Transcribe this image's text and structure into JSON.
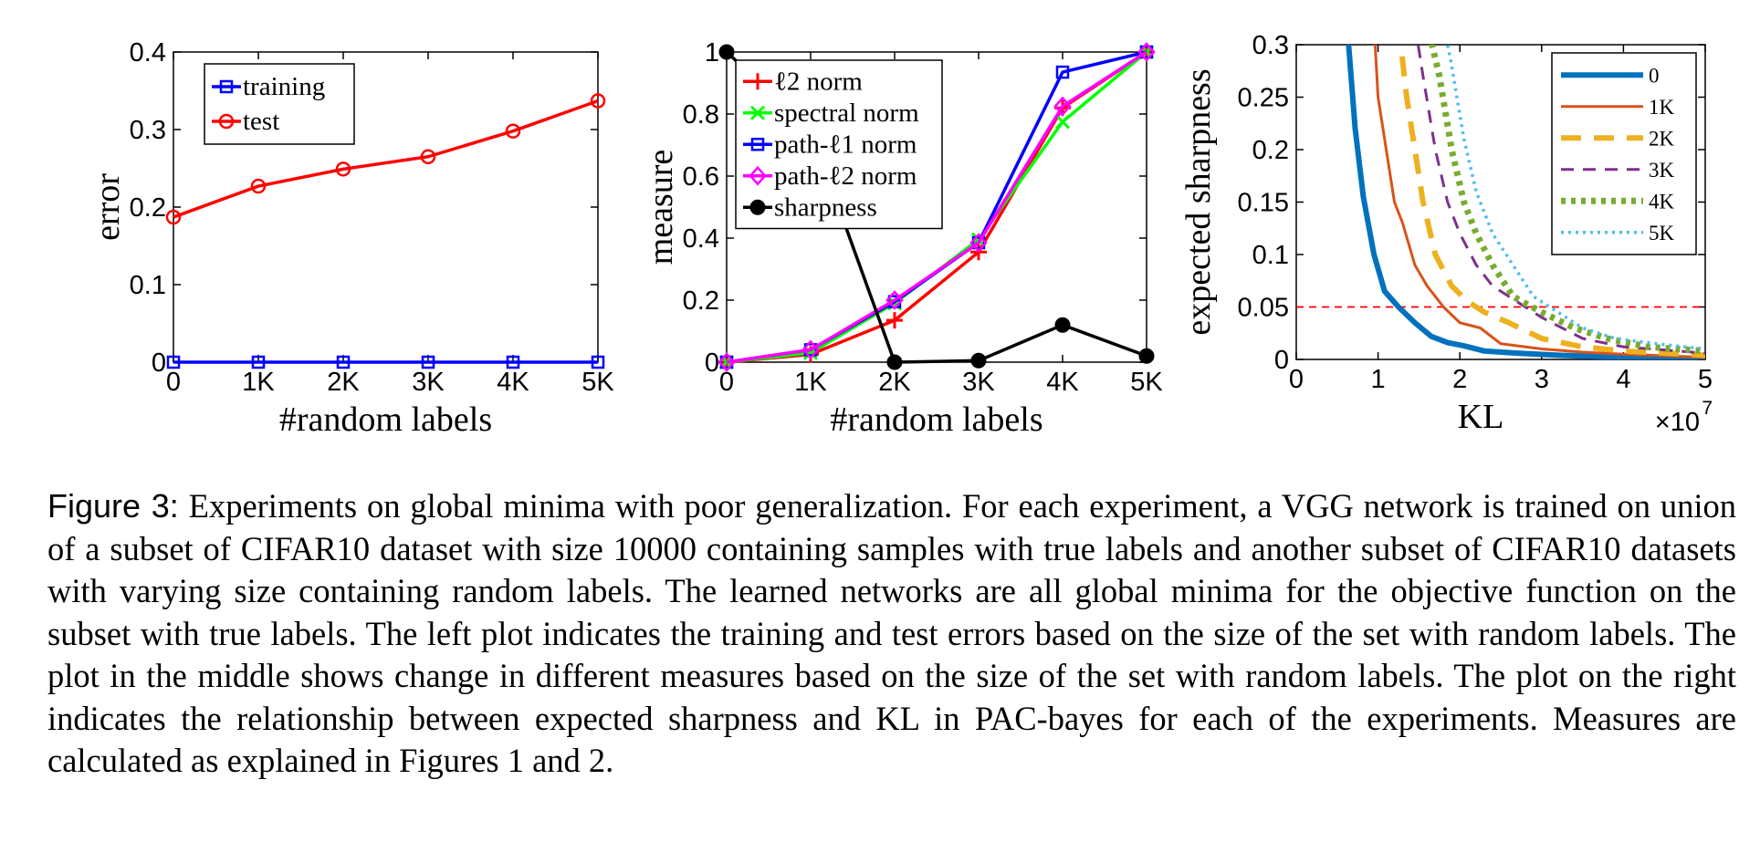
{
  "chart_data": [
    {
      "type": "line",
      "xlabel": "#random labels",
      "ylabel": "error",
      "categories": [
        "0",
        "1K",
        "2K",
        "3K",
        "4K",
        "5K"
      ],
      "x": [
        0,
        1000,
        2000,
        3000,
        4000,
        5000
      ],
      "ylim": [
        0,
        0.4
      ],
      "yticks": [
        "0",
        "0.1",
        "0.2",
        "0.3",
        "0.4"
      ],
      "grid": false,
      "legend": "top-left",
      "series": [
        {
          "name": "training",
          "color": "#0000ff",
          "marker": "square",
          "values": [
            0,
            0,
            0,
            0,
            0,
            0
          ]
        },
        {
          "name": "test",
          "color": "#ff0000",
          "marker": "circle",
          "values": [
            0.187,
            0.227,
            0.249,
            0.265,
            0.298,
            0.337
          ]
        }
      ]
    },
    {
      "type": "line",
      "xlabel": "#random labels",
      "ylabel": "measure",
      "categories": [
        "0",
        "1K",
        "2K",
        "3K",
        "4K",
        "5K"
      ],
      "x": [
        0,
        1000,
        2000,
        3000,
        4000,
        5000
      ],
      "ylim": [
        0,
        1
      ],
      "yticks": [
        "0",
        "0.2",
        "0.4",
        "0.6",
        "0.8",
        "1"
      ],
      "grid": false,
      "legend": "top-left",
      "series": [
        {
          "name": "ℓ2 norm",
          "color": "#ff0000",
          "marker": "plus",
          "values": [
            0,
            0.025,
            0.135,
            0.355,
            0.82,
            1.0
          ]
        },
        {
          "name": "spectral norm",
          "color": "#00ff00",
          "marker": "x",
          "values": [
            0,
            0.03,
            0.19,
            0.395,
            0.775,
            1.0
          ]
        },
        {
          "name": "path-ℓ1 norm",
          "color": "#0000ff",
          "marker": "square",
          "values": [
            0,
            0.04,
            0.195,
            0.385,
            0.935,
            1.0
          ]
        },
        {
          "name": "path-ℓ2 norm",
          "color": "#ff00ff",
          "marker": "diamond",
          "values": [
            0,
            0.04,
            0.2,
            0.385,
            0.825,
            1.0
          ]
        },
        {
          "name": "sharpness",
          "color": "#000000",
          "marker": "dot",
          "values": [
            1.0,
            0.75,
            0.0,
            0.005,
            0.12,
            0.02
          ]
        }
      ]
    },
    {
      "type": "line",
      "xlabel": "KL",
      "x_exponent": "×10",
      "x_exponent_power": "7",
      "ylabel": "expected sharpness",
      "xlim": [
        0,
        5
      ],
      "ylim": [
        0,
        0.3
      ],
      "xticks": [
        "0",
        "1",
        "2",
        "3",
        "4",
        "5"
      ],
      "yticks": [
        "0",
        "0.05",
        "0.1",
        "0.15",
        "0.2",
        "0.25",
        "0.3"
      ],
      "threshold": {
        "value": 0.05,
        "color": "#ff0000",
        "style": "dashed"
      },
      "grid": false,
      "legend": "top-right",
      "series": [
        {
          "name": "0",
          "color": "#0072bd",
          "style": "solid-thick",
          "x": [
            0.62,
            0.72,
            0.82,
            0.95,
            1.08,
            1.25,
            1.45,
            1.65,
            1.85,
            2.05,
            2.3,
            2.7,
            3.2,
            4.0,
            5.0
          ],
          "values": [
            0.32,
            0.22,
            0.155,
            0.1,
            0.065,
            0.05,
            0.035,
            0.022,
            0.016,
            0.013,
            0.008,
            0.006,
            0.004,
            0.002,
            0.001
          ]
        },
        {
          "name": "1K",
          "color": "#d95319",
          "style": "solid",
          "x": [
            0.95,
            1.0,
            1.1,
            1.2,
            1.3,
            1.45,
            1.6,
            1.8,
            2.0,
            2.25,
            2.5,
            3.0,
            3.5,
            4.0,
            5.0
          ],
          "values": [
            0.32,
            0.25,
            0.2,
            0.15,
            0.13,
            0.09,
            0.07,
            0.05,
            0.035,
            0.03,
            0.015,
            0.01,
            0.007,
            0.005,
            0.002
          ]
        },
        {
          "name": "2K",
          "color": "#edb120",
          "style": "long-dash",
          "x": [
            1.25,
            1.35,
            1.45,
            1.55,
            1.7,
            1.9,
            2.1,
            2.3,
            2.6,
            3.0,
            3.5,
            4.0,
            5.0
          ],
          "values": [
            0.32,
            0.25,
            0.2,
            0.15,
            0.1,
            0.07,
            0.055,
            0.045,
            0.035,
            0.02,
            0.012,
            0.008,
            0.004
          ]
        },
        {
          "name": "3K",
          "color": "#7e2f8e",
          "style": "dash",
          "x": [
            1.45,
            1.55,
            1.7,
            1.85,
            2.0,
            2.2,
            2.4,
            2.7,
            3.0,
            3.5,
            4.0,
            5.0
          ],
          "values": [
            0.32,
            0.27,
            0.2,
            0.15,
            0.12,
            0.09,
            0.07,
            0.055,
            0.04,
            0.02,
            0.012,
            0.006
          ]
        },
        {
          "name": "4K",
          "color": "#77ac30",
          "style": "dotted-thick",
          "x": [
            1.6,
            1.75,
            1.9,
            2.05,
            2.2,
            2.4,
            2.65,
            3.0,
            3.4,
            3.8,
            4.3,
            5.0
          ],
          "values": [
            0.32,
            0.27,
            0.2,
            0.15,
            0.12,
            0.09,
            0.06,
            0.045,
            0.03,
            0.02,
            0.012,
            0.008
          ]
        },
        {
          "name": "5K",
          "color": "#4dbeee",
          "style": "dotted",
          "x": [
            1.8,
            1.9,
            2.05,
            2.2,
            2.4,
            2.65,
            2.9,
            3.2,
            3.5,
            3.9,
            4.4,
            5.0
          ],
          "values": [
            0.32,
            0.28,
            0.21,
            0.16,
            0.12,
            0.09,
            0.06,
            0.045,
            0.03,
            0.02,
            0.015,
            0.01
          ]
        }
      ]
    }
  ],
  "caption": {
    "label": "Figure 3:",
    "text": "Experiments on global minima with poor generalization. For each experiment, a VGG network is trained on union of a subset of CIFAR10 dataset with size 10000 containing samples with true labels and another subset of CIFAR10 datasets with varying size containing random labels. The learned networks are all global minima for the objective function on the subset with true labels. The left plot indicates the training and test errors based on the size of the set with random labels. The plot in the middle shows change in different measures based on the size of the set with random labels. The plot on the right indicates the relationship between expected sharpness and KL in PAC-bayes for each of the experiments. Measures are calculated as explained in Figures 1 and 2."
  }
}
